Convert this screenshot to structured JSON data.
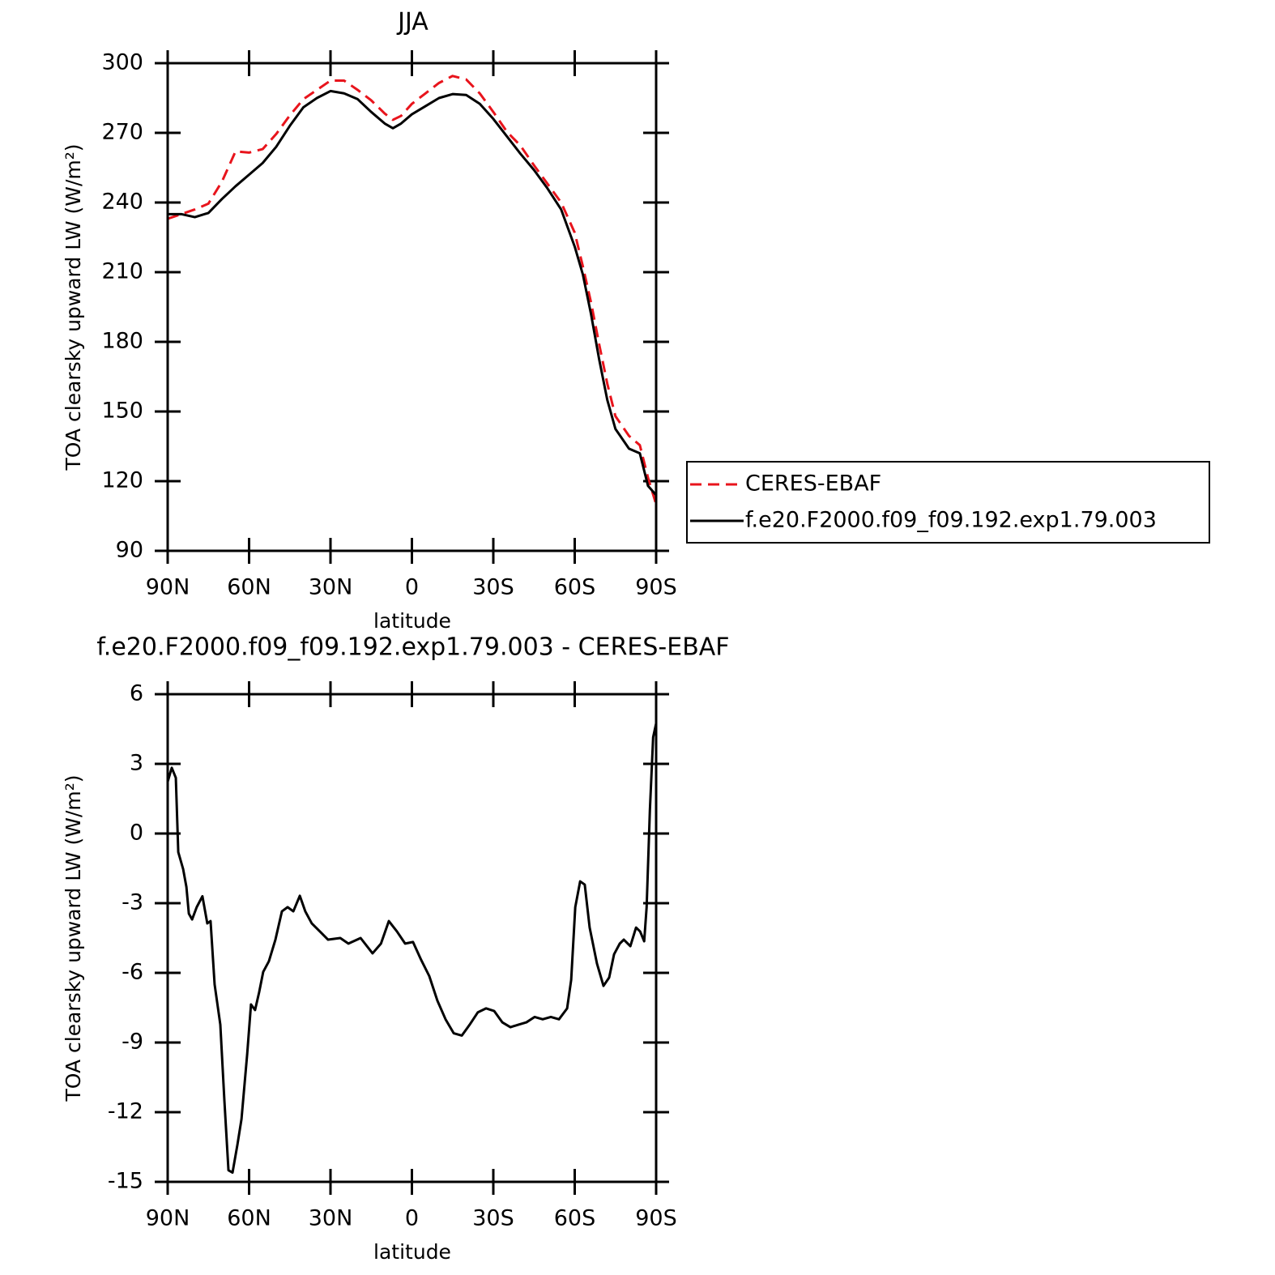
{
  "chart_data": [
    {
      "type": "line",
      "title": "JJA",
      "x_label": "latitude",
      "y_label": "TOA clearsky upward LW (W/m²)",
      "x": [
        90,
        85,
        80,
        75,
        70,
        65,
        60,
        55,
        50,
        45,
        40,
        35,
        30,
        25,
        20,
        15,
        10,
        7,
        4,
        0,
        -5,
        -10,
        -15,
        -20,
        -25,
        -30,
        -35,
        -40,
        -45,
        -50,
        -55,
        -60,
        -63,
        -66,
        -69,
        -72,
        -75,
        -80,
        -84,
        -87,
        -90
      ],
      "series": [
        {
          "name": "CERES-EBAF",
          "color": "#e8141c",
          "linestyle": "dashed",
          "values": [
            233,
            235,
            237,
            239.5,
            249,
            262,
            261.5,
            263,
            269.5,
            277.5,
            284.5,
            288.5,
            292.5,
            292.5,
            288.5,
            284,
            278.3,
            275.6,
            277.3,
            282.5,
            287,
            291.5,
            294.5,
            293,
            287,
            279,
            270.5,
            264.5,
            256,
            248,
            240,
            227,
            212.5,
            197,
            179,
            162,
            148,
            139.5,
            135.5,
            121.5,
            110
          ]
        },
        {
          "name": "f.e20.F2000.f09_f09.192.exp1.79.003",
          "color": "#000000",
          "linestyle": "solid",
          "values": [
            235,
            235,
            233.7,
            235.5,
            241.5,
            247,
            252,
            257,
            264,
            273,
            281,
            285,
            288,
            287,
            284.5,
            279,
            274,
            272,
            274,
            278,
            281.5,
            285,
            286.7,
            286.3,
            282.5,
            276,
            268.5,
            261,
            254,
            246,
            237,
            221,
            209,
            192,
            172.5,
            155,
            142.5,
            134,
            132,
            118,
            114
          ]
        }
      ],
      "xlim": [
        90,
        -90
      ],
      "xticks": [
        {
          "value": 90,
          "label": "90N"
        },
        {
          "value": 60,
          "label": "60N"
        },
        {
          "value": 30,
          "label": "30N"
        },
        0,
        {
          "value": -30,
          "label": "30S"
        },
        {
          "value": -60,
          "label": "60S"
        },
        {
          "value": -90,
          "label": "90S"
        }
      ],
      "ylim": [
        90,
        300
      ],
      "yticks": [
        90,
        120,
        150,
        180,
        210,
        240,
        270,
        300
      ],
      "legend": "right"
    },
    {
      "type": "line",
      "title": "f.e20.F2000.f09_f09.192.exp1.79.003 - CERES-EBAF",
      "x_label": "latitude",
      "y_label": "TOA clearsky upward LW (W/m²)",
      "x": [
        90,
        88.5,
        87,
        86.1,
        84.3,
        83.1,
        82.2,
        81,
        79.3,
        77.2,
        75.4,
        74.2,
        72.7,
        70.6,
        69.1,
        67.6,
        66.1,
        64.3,
        62.8,
        60.7,
        59.3,
        57.8,
        56.3,
        54.8,
        52.7,
        50.3,
        47.9,
        45.8,
        43.7,
        41.3,
        39.3,
        36.9,
        33.9,
        30.9,
        26.4,
        23.4,
        18.9,
        14.5,
        11.4,
        8.5,
        5.5,
        2.5,
        -0.4,
        -3.4,
        -6.4,
        -9.4,
        -12.4,
        -15.4,
        -18.4,
        -21.3,
        -24.3,
        -27.3,
        -30.3,
        -33.3,
        -36.3,
        -39.3,
        -42.2,
        -45.2,
        -48.2,
        -51.2,
        -54.2,
        -57.2,
        -58.7,
        -60.2,
        -62,
        -63.7,
        -65.5,
        -68.2,
        -70.6,
        -72.7,
        -74.5,
        -76.6,
        -78.1,
        -80.5,
        -82.6,
        -84.1,
        -85.6,
        -86.5,
        -87.7,
        -88.9,
        -90
      ],
      "values": [
        2.23,
        2.83,
        2.4,
        -0.8,
        -1.53,
        -2.3,
        -3.45,
        -3.7,
        -3.17,
        -2.7,
        -3.87,
        -3.77,
        -6.5,
        -8.23,
        -11.5,
        -14.5,
        -14.6,
        -13.4,
        -12.3,
        -9.5,
        -7.36,
        -7.6,
        -6.84,
        -5.96,
        -5.5,
        -4.57,
        -3.35,
        -3.17,
        -3.35,
        -2.68,
        -3.35,
        -3.87,
        -4.22,
        -4.57,
        -4.5,
        -4.74,
        -4.5,
        -5.16,
        -4.74,
        -3.77,
        -4.22,
        -4.74,
        -4.67,
        -5.44,
        -6.14,
        -7.2,
        -8,
        -8.6,
        -8.7,
        -8.23,
        -7.7,
        -7.53,
        -7.64,
        -8.13,
        -8.34,
        -8.23,
        -8.13,
        -7.9,
        -8,
        -7.9,
        -8,
        -7.53,
        -6.3,
        -3.17,
        -2.06,
        -2.2,
        -4.05,
        -5.6,
        -6.56,
        -6.2,
        -5.2,
        -4.74,
        -4.57,
        -4.85,
        -4.05,
        -4.22,
        -4.64,
        -3.17,
        1.01,
        4.15,
        4.74
      ],
      "color": "#000000",
      "xlim": [
        90,
        -90
      ],
      "xticks": [
        {
          "value": 90,
          "label": "90N"
        },
        {
          "value": 60,
          "label": "60N"
        },
        {
          "value": 30,
          "label": "30N"
        },
        0,
        {
          "value": -30,
          "label": "30S"
        },
        {
          "value": -60,
          "label": "60S"
        },
        {
          "value": -90,
          "label": "90S"
        }
      ],
      "ylim": [
        -15,
        6
      ],
      "yticks": [
        -15,
        -12,
        -9,
        -6,
        -3,
        0,
        3,
        6
      ]
    }
  ]
}
